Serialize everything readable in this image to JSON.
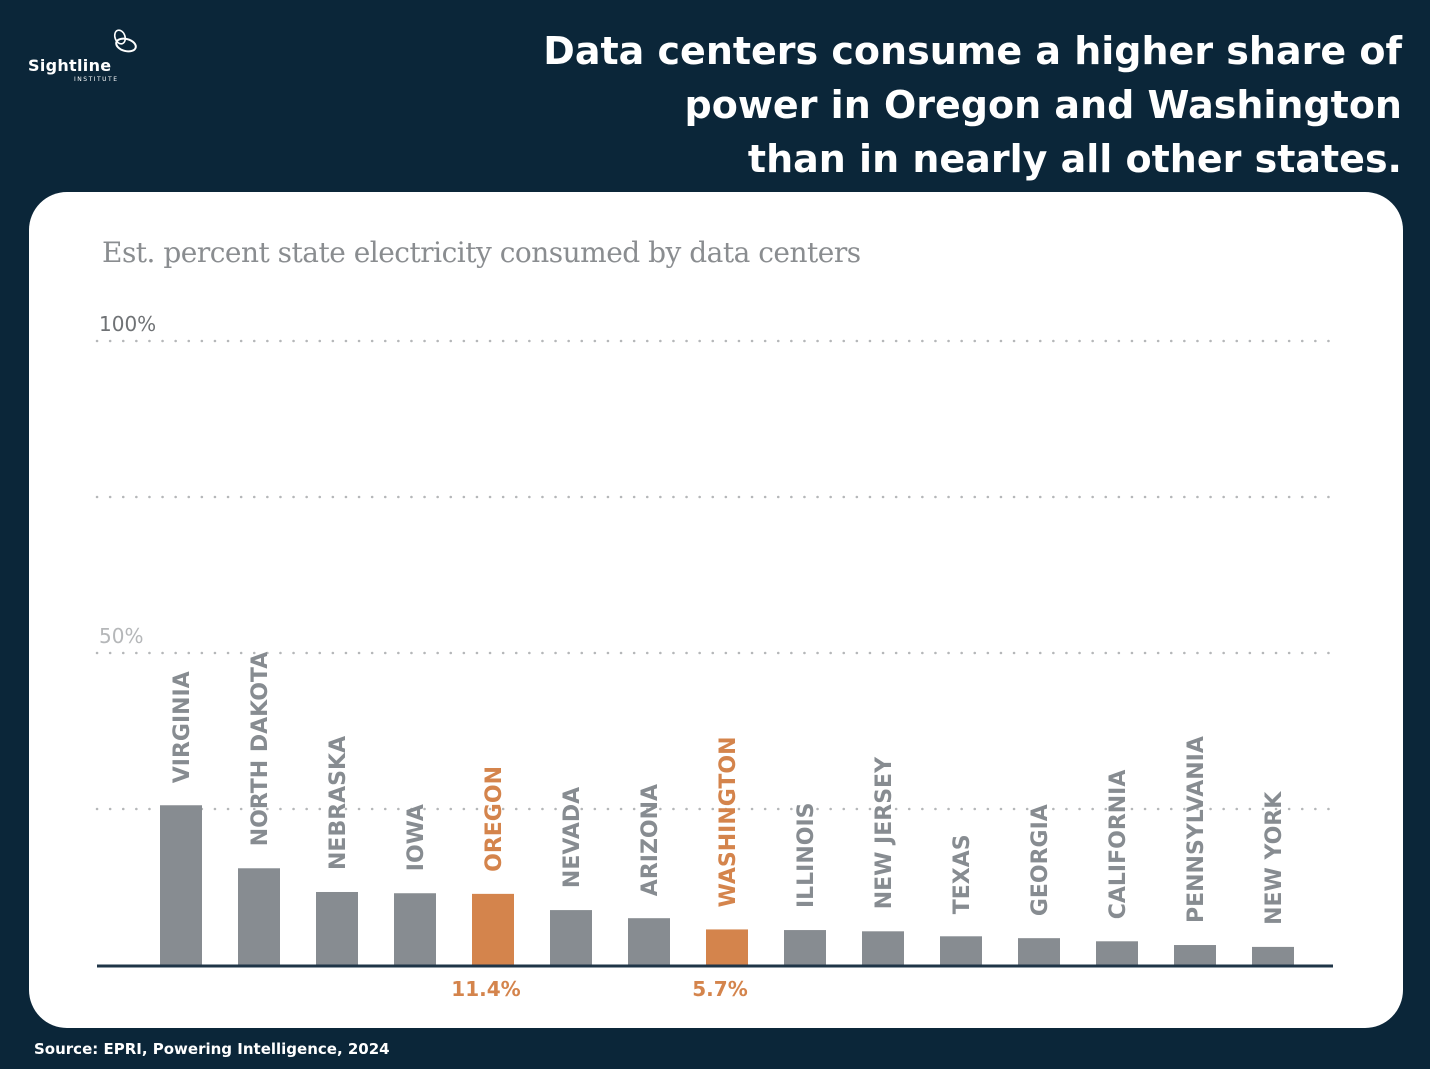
{
  "logo": {
    "name": "Sightline",
    "sub": "INSTITUTE"
  },
  "header": {
    "title_lines": [
      "Data centers consume a higher share of",
      "power in Oregon and Washington",
      "than in nearly all other states."
    ]
  },
  "source": "Source: EPRI, Powering Intelligence, 2024",
  "colors": {
    "background": "#0b2639",
    "bar": "#878c91",
    "highlight": "#d4844c"
  },
  "chart_data": {
    "type": "bar",
    "title": "Est. percent state electricity consumed by data centers",
    "categories": [
      "VIRGINIA",
      "NORTH DAKOTA",
      "NEBRASKA",
      "IOWA",
      "OREGON",
      "NEVADA",
      "ARIZONA",
      "WASHINGTON",
      "ILLINOIS",
      "NEW JERSEY",
      "TEXAS",
      "GEORGIA",
      "CALIFORNIA",
      "PENNSYLVANIA",
      "NEW YORK"
    ],
    "values": [
      25.6,
      15.5,
      11.7,
      11.5,
      11.4,
      8.8,
      7.5,
      5.7,
      5.6,
      5.4,
      4.6,
      4.3,
      3.8,
      3.2,
      2.9
    ],
    "highlighted": [
      "OREGON",
      "WASHINGTON"
    ],
    "data_labels": {
      "OREGON": "11.4%",
      "WASHINGTON": "5.7%"
    },
    "ylim": [
      0,
      100
    ],
    "yticks": [
      0,
      25,
      50,
      75,
      100
    ],
    "ytick_labels": {
      "50": "50%",
      "100": "100%"
    },
    "grid": true,
    "xlabel": "",
    "ylabel": ""
  }
}
